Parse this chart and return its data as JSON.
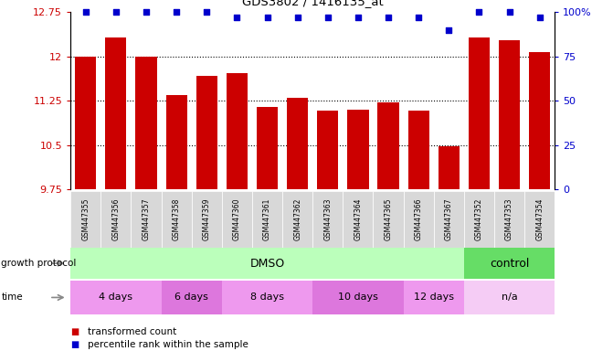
{
  "title": "GDS3802 / 1416135_at",
  "samples": [
    "GSM447355",
    "GSM447356",
    "GSM447357",
    "GSM447358",
    "GSM447359",
    "GSM447360",
    "GSM447361",
    "GSM447362",
    "GSM447363",
    "GSM447364",
    "GSM447365",
    "GSM447366",
    "GSM447367",
    "GSM447352",
    "GSM447353",
    "GSM447354"
  ],
  "bar_values": [
    12.0,
    12.32,
    12.0,
    11.35,
    11.68,
    11.72,
    11.15,
    11.3,
    11.08,
    11.1,
    11.22,
    11.08,
    10.48,
    12.32,
    12.28,
    12.08
  ],
  "percentile_values": [
    100,
    100,
    100,
    100,
    100,
    97,
    97,
    97,
    97,
    97,
    97,
    97,
    90,
    100,
    100,
    97
  ],
  "bar_color": "#cc0000",
  "dot_color": "#0000cc",
  "ylim_left": [
    9.75,
    12.75
  ],
  "ylim_right": [
    0,
    100
  ],
  "yticks_left": [
    9.75,
    10.5,
    11.25,
    12.0,
    12.75
  ],
  "yticks_right": [
    0,
    25,
    50,
    75,
    100
  ],
  "ytick_labels_left": [
    "9.75",
    "10.5",
    "11.25",
    "12",
    "12.75"
  ],
  "ytick_labels_right": [
    "0",
    "25",
    "50",
    "75",
    "100%"
  ],
  "hlines": [
    10.5,
    11.25,
    12.0
  ],
  "growth_protocol_label": "growth protocol",
  "time_label": "time",
  "dmso_label": "DMSO",
  "control_label": "control",
  "time_groups": [
    {
      "label": "4 days",
      "start": 0,
      "end": 3,
      "color": "#ee99ee"
    },
    {
      "label": "6 days",
      "start": 3,
      "end": 5,
      "color": "#dd77dd"
    },
    {
      "label": "8 days",
      "start": 5,
      "end": 8,
      "color": "#ee99ee"
    },
    {
      "label": "10 days",
      "start": 8,
      "end": 11,
      "color": "#dd77dd"
    },
    {
      "label": "12 days",
      "start": 11,
      "end": 13,
      "color": "#ee99ee"
    },
    {
      "label": "n/a",
      "start": 13,
      "end": 16,
      "color": "#f5ccf5"
    }
  ],
  "dmso_range": [
    0,
    13
  ],
  "control_range": [
    13,
    16
  ],
  "dmso_color": "#bbffbb",
  "control_color": "#66dd66",
  "xticklabel_bg": "#d8d8d8",
  "legend_items": [
    {
      "color": "#cc0000",
      "label": "transformed count"
    },
    {
      "color": "#0000cc",
      "label": "percentile rank within the sample"
    }
  ]
}
